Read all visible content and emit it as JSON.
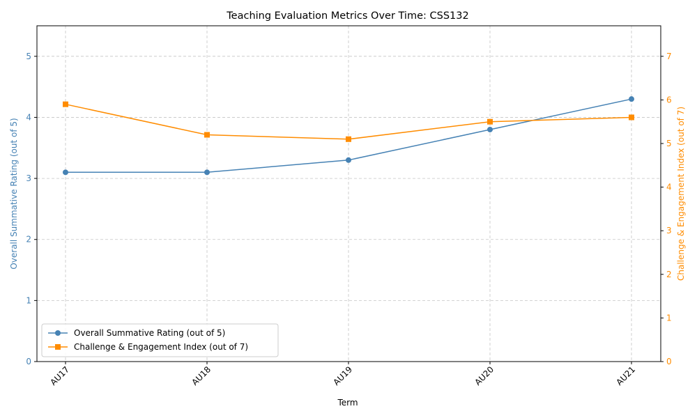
{
  "chart_data": {
    "type": "line",
    "title": "Teaching Evaluation Metrics Over Time: CSS132",
    "xlabel": "Term",
    "categories": [
      "AU17",
      "AU18",
      "AU19",
      "AU20",
      "AU21"
    ],
    "ylabel_left": "Overall Summative Rating (out of 5)",
    "ylabel_right": "Challenge & Engagement Index (out of 7)",
    "ylim_left": [
      0,
      5.5
    ],
    "ylim_right": [
      0,
      7.7
    ],
    "yticks_left": [
      "0",
      "1",
      "2",
      "3",
      "4",
      "5"
    ],
    "yticks_right": [
      "0",
      "1",
      "2",
      "3",
      "4",
      "5",
      "6",
      "7"
    ],
    "grid": true,
    "legend_position": "lower-left",
    "series": [
      {
        "name": "Overall Summative Rating (out of 5)",
        "axis": "left",
        "marker": "circle",
        "color": "#4682b4",
        "values": [
          3.1,
          3.1,
          3.3,
          3.8,
          4.3
        ]
      },
      {
        "name": "Challenge & Engagement Index (out of 7)",
        "axis": "right",
        "marker": "square",
        "color": "#ff8c00",
        "values": [
          5.9,
          5.2,
          5.1,
          5.5,
          5.6
        ]
      }
    ]
  }
}
